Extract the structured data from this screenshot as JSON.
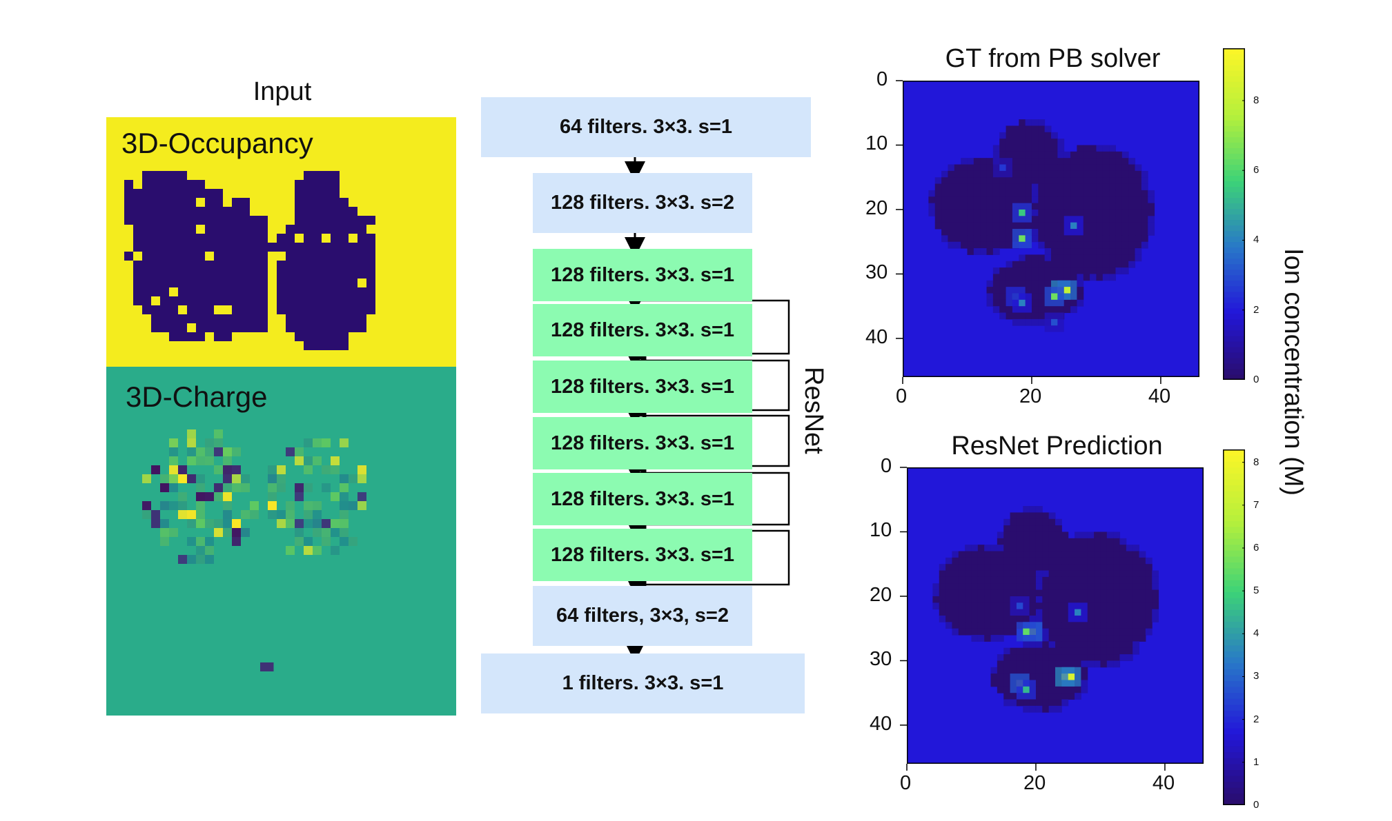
{
  "input_title": "Input",
  "occupancy_label": "3D-Occupancy",
  "charge_label": "3D-Charge",
  "resnet_label": "ResNet",
  "layers": [
    {
      "label": "64 filters. 3×3. s=1",
      "kind": "plain"
    },
    {
      "label": "128 filters. 3×3. s=2",
      "kind": "plain"
    },
    {
      "label": "128 filters. 3×3. s=1",
      "kind": "res"
    },
    {
      "label": "128 filters. 3×3. s=1",
      "kind": "res"
    },
    {
      "label": "128 filters. 3×3. s=1",
      "kind": "res"
    },
    {
      "label": "128 filters. 3×3. s=1",
      "kind": "res"
    },
    {
      "label": "128 filters. 3×3. s=1",
      "kind": "res"
    },
    {
      "label": "128 filters. 3×3. s=1",
      "kind": "res"
    },
    {
      "label": "64 filters, 3×3, s=2",
      "kind": "plain"
    },
    {
      "label": "1 filters. 3×3. s=1",
      "kind": "plain"
    }
  ],
  "colors": {
    "occupancy_bg": "#f4ec1e",
    "occupancy_fg": "#2a0d6e",
    "charge_bg": "#2aac8a",
    "layer_blue": "#d4e6fb",
    "layer_green": "#8cfbb1",
    "heat_bg": "#2217d9",
    "heat_dark": "#2a0d6e"
  },
  "chart_data": [
    {
      "type": "heatmap",
      "title": "GT from PB solver",
      "xticks": [
        "0",
        "20",
        "40"
      ],
      "yticks": [
        "0",
        "10",
        "20",
        "30",
        "40"
      ],
      "xlim": [
        0,
        45
      ],
      "ylim": [
        45,
        0
      ],
      "colorbar_ticks": [
        "0",
        "2",
        "4",
        "6",
        "8"
      ],
      "colorbar_range": [
        0,
        9.5
      ],
      "colorbar_label": "Ion concentration (M)",
      "hotspots": [
        {
          "x": 24,
          "y": 32,
          "v": 9.0
        },
        {
          "x": 25,
          "y": 32,
          "v": 8.0
        },
        {
          "x": 23,
          "y": 33,
          "v": 6.5
        },
        {
          "x": 18,
          "y": 20,
          "v": 5.5
        },
        {
          "x": 18,
          "y": 24,
          "v": 6.5
        },
        {
          "x": 17,
          "y": 33,
          "v": 5.0
        },
        {
          "x": 18,
          "y": 34,
          "v": 4.0
        },
        {
          "x": 26,
          "y": 22,
          "v": 4.0
        },
        {
          "x": 23,
          "y": 37,
          "v": 3.0
        },
        {
          "x": 15,
          "y": 13,
          "v": 2.5
        }
      ]
    },
    {
      "type": "heatmap",
      "title": "ResNet Prediction",
      "xticks": [
        "0",
        "20",
        "40"
      ],
      "yticks": [
        "0",
        "10",
        "20",
        "30",
        "40"
      ],
      "xlim": [
        0,
        45
      ],
      "ylim": [
        45,
        0
      ],
      "colorbar_ticks": [
        "0",
        "1",
        "2",
        "3",
        "4",
        "5",
        "6",
        "7",
        "8"
      ],
      "colorbar_range": [
        0,
        8.3
      ],
      "hotspots": [
        {
          "x": 24,
          "y": 32,
          "v": 8.0
        },
        {
          "x": 25,
          "y": 32,
          "v": 7.5
        },
        {
          "x": 19,
          "y": 25,
          "v": 6.5
        },
        {
          "x": 18,
          "y": 25,
          "v": 5.5
        },
        {
          "x": 17,
          "y": 33,
          "v": 6.0
        },
        {
          "x": 18,
          "y": 34,
          "v": 4.5
        },
        {
          "x": 26,
          "y": 22,
          "v": 3.5
        },
        {
          "x": 17,
          "y": 21,
          "v": 2.5
        }
      ]
    }
  ]
}
